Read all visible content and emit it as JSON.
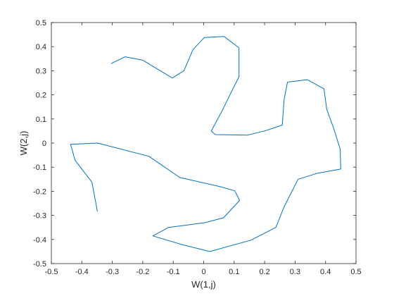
{
  "chart_data": {
    "type": "line",
    "title": "",
    "xlabel": "W(1,j)",
    "ylabel": "W(2,j)",
    "xlim": [
      -0.5,
      0.5
    ],
    "ylim": [
      -0.5,
      0.5
    ],
    "xticks": [
      -0.5,
      -0.4,
      -0.3,
      -0.2,
      -0.1,
      0,
      0.1,
      0.2,
      0.3,
      0.4,
      0.5
    ],
    "yticks": [
      -0.5,
      -0.4,
      -0.3,
      -0.2,
      -0.1,
      0,
      0.1,
      0.2,
      0.3,
      0.4,
      0.5
    ],
    "xtick_labels": [
      "-0.5",
      "-0.4",
      "-0.3",
      "-0.2",
      "-0.1",
      "0",
      "0.1",
      "0.2",
      "0.3",
      "0.4",
      "0.5"
    ],
    "ytick_labels": [
      "-0.5",
      "-0.4",
      "-0.3",
      "-0.2",
      "-0.1",
      "0",
      "0.1",
      "0.2",
      "0.3",
      "0.4",
      "0.5"
    ],
    "grid": false,
    "box": true,
    "series": [
      {
        "color": "#0072BD",
        "x": [
          -0.303,
          -0.258,
          -0.2,
          -0.103,
          -0.065,
          -0.035,
          0.002,
          0.067,
          0.116,
          0.116,
          0.09,
          0.061,
          0.025,
          0.038,
          0.145,
          0.205,
          0.258,
          0.264,
          0.275,
          0.34,
          0.395,
          0.404,
          0.427,
          0.448,
          0.45,
          0.374,
          0.31,
          0.265,
          0.237,
          0.155,
          0.02,
          -0.075,
          -0.167,
          -0.115,
          0.005,
          0.065,
          0.118,
          0.102,
          0.052,
          -0.078,
          -0.18,
          -0.348,
          -0.437,
          -0.422,
          -0.367,
          -0.349
        ],
        "y": [
          0.33,
          0.358,
          0.344,
          0.27,
          0.3,
          0.388,
          0.438,
          0.442,
          0.395,
          0.275,
          0.21,
          0.135,
          0.05,
          0.035,
          0.033,
          0.052,
          0.075,
          0.18,
          0.253,
          0.263,
          0.225,
          0.14,
          0.06,
          -0.025,
          -0.108,
          -0.125,
          -0.15,
          -0.262,
          -0.35,
          -0.403,
          -0.45,
          -0.42,
          -0.385,
          -0.35,
          -0.33,
          -0.31,
          -0.238,
          -0.198,
          -0.18,
          -0.143,
          -0.055,
          0.0,
          -0.005,
          -0.072,
          -0.162,
          -0.283
        ]
      }
    ]
  }
}
